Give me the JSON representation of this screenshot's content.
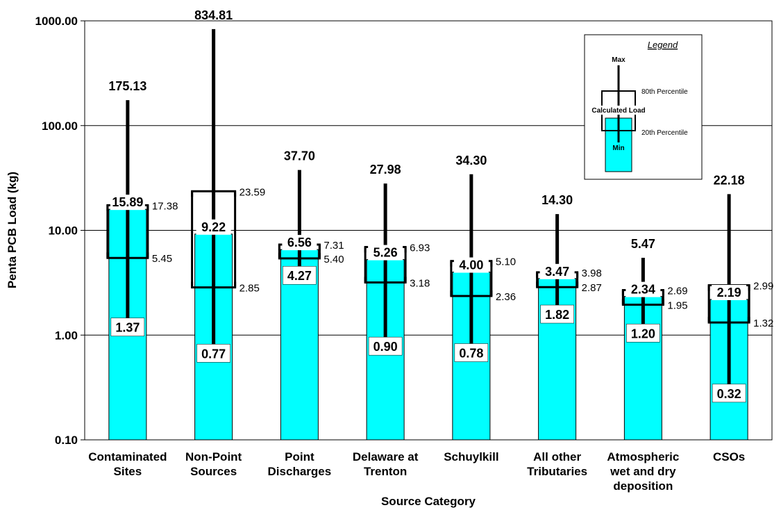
{
  "chart_data": {
    "type": "bar",
    "xlabel": "Source Category",
    "ylabel": "Penta PCB Load (kg)",
    "yscale": "log",
    "ylim": [
      0.1,
      1000
    ],
    "yticks": [
      "0.10",
      "1.00",
      "10.00",
      "100.00",
      "1000.00"
    ],
    "grid": "horizontal",
    "bar_color": "#00FFFF",
    "categories": [
      [
        "Contaminated",
        "Sites"
      ],
      [
        "Non-Point",
        "Sources"
      ],
      [
        "Point",
        "Discharges"
      ],
      [
        "Delaware at",
        "Trenton"
      ],
      [
        "Schuylkill"
      ],
      [
        "All other",
        "Tributaries"
      ],
      [
        "Atmospheric",
        "wet and dry",
        "deposition"
      ],
      [
        "CSOs"
      ]
    ],
    "series": [
      {
        "name": "Calculated Load",
        "values": [
          15.89,
          9.22,
          6.56,
          5.26,
          4.0,
          3.47,
          2.34,
          2.19
        ],
        "labels": [
          "15.89",
          "9.22",
          "6.56",
          "5.26",
          "4.00",
          "3.47",
          "2.34",
          "2.19"
        ]
      },
      {
        "name": "Max",
        "values": [
          175.13,
          834.81,
          37.7,
          27.98,
          34.3,
          14.3,
          5.47,
          22.18
        ],
        "labels": [
          "175.13",
          "834.81",
          "37.70",
          "27.98",
          "34.30",
          "14.30",
          "5.47",
          "22.18"
        ]
      },
      {
        "name": "Min",
        "values": [
          1.37,
          0.77,
          4.27,
          0.9,
          0.78,
          1.82,
          1.2,
          0.32
        ],
        "labels": [
          "1.37",
          "0.77",
          "4.27",
          "0.90",
          "0.78",
          "1.82",
          "1.20",
          "0.32"
        ]
      },
      {
        "name": "80th Percentile",
        "values": [
          17.38,
          23.59,
          7.31,
          6.93,
          5.1,
          3.98,
          2.69,
          2.99
        ],
        "labels": [
          "17.38",
          "23.59",
          "7.31",
          "6.93",
          "5.10",
          "3.98",
          "2.69",
          "2.99"
        ]
      },
      {
        "name": "20th Percentile",
        "values": [
          5.45,
          2.85,
          5.4,
          3.18,
          2.36,
          2.87,
          1.95,
          1.32
        ],
        "labels": [
          "5.45",
          "2.85",
          "5.40",
          "3.18",
          "2.36",
          "2.87",
          "1.95",
          "1.32"
        ]
      }
    ],
    "legend": {
      "title": "Legend",
      "placement": "top-right",
      "max": "Max",
      "p80": "80th Percentile",
      "calc": "Calculated Load",
      "p20": "20th Percentile",
      "min": "Min"
    }
  }
}
